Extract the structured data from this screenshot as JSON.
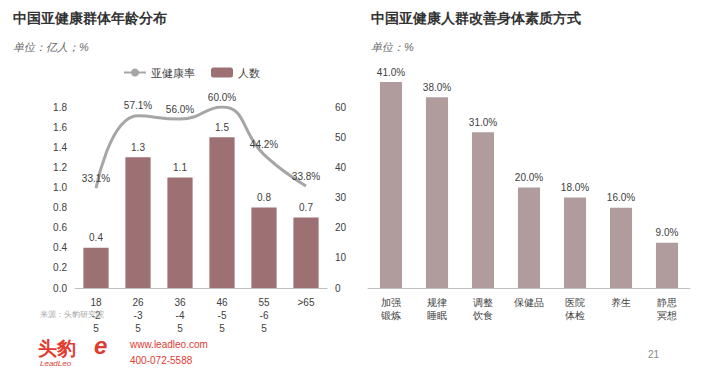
{
  "page": {
    "source": "来源：头豹研究院",
    "logo": "头豹",
    "logo_en": "LeadLeo",
    "logo_mark": "e",
    "website": "www.leadleo.com",
    "phone": "400-072-5588",
    "page_number": "21"
  },
  "chart_data": [
    {
      "type": "bar",
      "title": "中国亚健康群体年龄分布",
      "subtitle": "单位：亿人；%",
      "categories": [
        "18-25",
        "26-35",
        "36-45",
        "46-55",
        "55-65",
        ">65"
      ],
      "series": [
        {
          "name": "亚健康率",
          "type": "line",
          "axis": "y2",
          "color": "#a6a6a6",
          "line_style": "smooth",
          "marker": "none",
          "values": [
            33.1,
            57.1,
            56.0,
            60.0,
            44.2,
            33.8
          ],
          "value_labels": [
            "33.1%",
            "57.1%",
            "56.0%",
            "60.0%",
            "44.2%",
            "33.8%"
          ]
        },
        {
          "name": "人数",
          "type": "bar",
          "color": "#9d7073",
          "values": [
            0.4,
            1.3,
            1.1,
            1.5,
            0.8,
            0.7
          ]
        }
      ],
      "ylim": [
        0,
        1.8
      ],
      "yticks": [
        {
          "value": 0,
          "label": "0.0"
        },
        0.2,
        0.4,
        0.6,
        0.8,
        {
          "value": 1,
          "label": "1.0"
        },
        1.2,
        1.4,
        1.6,
        1.8
      ],
      "y2lim": [
        0,
        60
      ],
      "y2ticks": [
        0,
        10,
        20,
        30,
        40,
        50,
        60
      ],
      "legend": "top",
      "grid": false,
      "data_labels": true
    },
    {
      "type": "bar",
      "title": "中国亚健康人群改善身体素质方式",
      "subtitle": "单位：%",
      "categories": [
        "加强锻炼",
        "规律睡眠",
        "调整饮食",
        "保健品",
        "医院体检",
        "养生",
        "静思冥想"
      ],
      "values": [
        41,
        38,
        31,
        20,
        18,
        16,
        9
      ],
      "value_labels": [
        "41.0%",
        "38.0%",
        "31.0%",
        "20.0%",
        "18.0%",
        "16.0%",
        "9.0%"
      ],
      "color": "#b09b9d",
      "ylim": [
        0,
        45
      ],
      "grid": false,
      "data_labels": true,
      "tick_labels": "x"
    }
  ]
}
